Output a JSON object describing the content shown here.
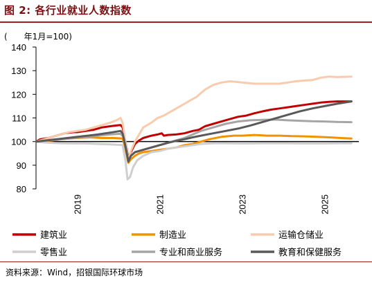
{
  "header": {
    "title": "图 2: 各行业就业人数指数"
  },
  "footer": {
    "source": "资料来源：Wind，招银国际环球市场"
  },
  "chart_data": {
    "type": "line",
    "unit_label": "(　　年1月=100)",
    "ylim": [
      80,
      140
    ],
    "yticks": [
      80,
      90,
      100,
      110,
      120,
      130,
      140
    ],
    "xlim": [
      2018.0,
      2025.83
    ],
    "xtick_labels": [
      "2019",
      "2021",
      "2023",
      "2025"
    ],
    "xtick_values": [
      2019.0,
      2021.0,
      2023.0,
      2025.0
    ],
    "grid": false,
    "legend_position": "bottom",
    "series": [
      {
        "name": "建筑业",
        "color": "#c00000",
        "points": [
          [
            2018.0,
            100
          ],
          [
            2018.1,
            101
          ],
          [
            2018.3,
            101.5
          ],
          [
            2018.5,
            102.5
          ],
          [
            2018.7,
            103.5
          ],
          [
            2018.9,
            104
          ],
          [
            2019.0,
            104
          ],
          [
            2019.2,
            104.5
          ],
          [
            2019.4,
            105
          ],
          [
            2019.6,
            106
          ],
          [
            2019.8,
            106.5
          ],
          [
            2019.95,
            106.8
          ],
          [
            2020.05,
            107
          ],
          [
            2020.1,
            106
          ],
          [
            2020.17,
            100
          ],
          [
            2020.24,
            93
          ],
          [
            2020.3,
            95.5
          ],
          [
            2020.4,
            99
          ],
          [
            2020.5,
            100.5
          ],
          [
            2020.6,
            101.5
          ],
          [
            2020.8,
            102.5
          ],
          [
            2020.95,
            103
          ],
          [
            2021.05,
            103.5
          ],
          [
            2021.1,
            102.5
          ],
          [
            2021.2,
            102.8
          ],
          [
            2021.4,
            103
          ],
          [
            2021.6,
            103.5
          ],
          [
            2021.8,
            104.5
          ],
          [
            2021.95,
            105
          ],
          [
            2022.1,
            106.5
          ],
          [
            2022.3,
            107.5
          ],
          [
            2022.5,
            108.5
          ],
          [
            2022.7,
            109.5
          ],
          [
            2022.9,
            110.5
          ],
          [
            2023.1,
            111
          ],
          [
            2023.3,
            112
          ],
          [
            2023.5,
            112.8
          ],
          [
            2023.7,
            113.5
          ],
          [
            2023.9,
            114
          ],
          [
            2024.1,
            114.5
          ],
          [
            2024.3,
            115
          ],
          [
            2024.5,
            115.5
          ],
          [
            2024.7,
            116
          ],
          [
            2024.9,
            116.5
          ],
          [
            2025.1,
            116.8
          ],
          [
            2025.3,
            117
          ],
          [
            2025.5,
            117
          ],
          [
            2025.65,
            117
          ]
        ]
      },
      {
        "name": "制造业",
        "color": "#f39200",
        "points": [
          [
            2018.0,
            100
          ],
          [
            2018.2,
            100.2
          ],
          [
            2018.4,
            100.5
          ],
          [
            2018.6,
            101
          ],
          [
            2018.8,
            101.3
          ],
          [
            2019.0,
            101.5
          ],
          [
            2019.3,
            101.8
          ],
          [
            2019.6,
            101.5
          ],
          [
            2019.9,
            101.5
          ],
          [
            2020.1,
            101.3
          ],
          [
            2020.17,
            97
          ],
          [
            2020.24,
            91
          ],
          [
            2020.3,
            92.5
          ],
          [
            2020.4,
            94
          ],
          [
            2020.5,
            95
          ],
          [
            2020.6,
            95.5
          ],
          [
            2020.8,
            96
          ],
          [
            2021.0,
            96.5
          ],
          [
            2021.2,
            97
          ],
          [
            2021.4,
            97.5
          ],
          [
            2021.6,
            98.5
          ],
          [
            2021.8,
            99
          ],
          [
            2022.0,
            100
          ],
          [
            2022.2,
            101
          ],
          [
            2022.5,
            102
          ],
          [
            2022.8,
            102.5
          ],
          [
            2023.0,
            102.5
          ],
          [
            2023.3,
            102.8
          ],
          [
            2023.6,
            102.5
          ],
          [
            2023.9,
            102.5
          ],
          [
            2024.2,
            102.3
          ],
          [
            2024.5,
            102.2
          ],
          [
            2024.8,
            102
          ],
          [
            2025.1,
            101.8
          ],
          [
            2025.4,
            101.5
          ],
          [
            2025.65,
            101.3
          ]
        ]
      },
      {
        "name": "运输仓储业",
        "color": "#f8cbad",
        "points": [
          [
            2018.0,
            100
          ],
          [
            2018.2,
            101
          ],
          [
            2018.4,
            102
          ],
          [
            2018.6,
            103
          ],
          [
            2018.8,
            104
          ],
          [
            2019.0,
            104.5
          ],
          [
            2019.2,
            105
          ],
          [
            2019.4,
            106
          ],
          [
            2019.6,
            107
          ],
          [
            2019.8,
            108
          ],
          [
            2019.95,
            109
          ],
          [
            2020.05,
            110
          ],
          [
            2020.1,
            108
          ],
          [
            2020.17,
            100
          ],
          [
            2020.24,
            92
          ],
          [
            2020.3,
            96
          ],
          [
            2020.4,
            100
          ],
          [
            2020.5,
            103
          ],
          [
            2020.6,
            106
          ],
          [
            2020.8,
            108
          ],
          [
            2020.95,
            110
          ],
          [
            2021.1,
            111
          ],
          [
            2021.3,
            113
          ],
          [
            2021.5,
            115
          ],
          [
            2021.7,
            117
          ],
          [
            2021.9,
            119
          ],
          [
            2022.1,
            122
          ],
          [
            2022.3,
            124
          ],
          [
            2022.5,
            125
          ],
          [
            2022.7,
            125.5
          ],
          [
            2022.9,
            125.2
          ],
          [
            2023.1,
            124.8
          ],
          [
            2023.3,
            124.5
          ],
          [
            2023.5,
            124.5
          ],
          [
            2023.7,
            124.5
          ],
          [
            2023.9,
            124.5
          ],
          [
            2024.1,
            125
          ],
          [
            2024.3,
            125.5
          ],
          [
            2024.5,
            125.8
          ],
          [
            2024.7,
            126
          ],
          [
            2024.9,
            127
          ],
          [
            2025.1,
            127.5
          ],
          [
            2025.3,
            127.3
          ],
          [
            2025.5,
            127.4
          ],
          [
            2025.65,
            127.5
          ]
        ]
      },
      {
        "name": "零售业",
        "color": "#d0cece",
        "points": [
          [
            2018.0,
            100
          ],
          [
            2018.3,
            99.5
          ],
          [
            2018.6,
            99.3
          ],
          [
            2018.9,
            99.2
          ],
          [
            2019.2,
            99.2
          ],
          [
            2019.5,
            99
          ],
          [
            2019.8,
            98.8
          ],
          [
            2020.1,
            98.5
          ],
          [
            2020.17,
            92
          ],
          [
            2020.22,
            84
          ],
          [
            2020.28,
            85
          ],
          [
            2020.35,
            89
          ],
          [
            2020.45,
            92
          ],
          [
            2020.6,
            94
          ],
          [
            2020.8,
            95.5
          ],
          [
            2021.0,
            96
          ],
          [
            2021.2,
            97
          ],
          [
            2021.4,
            97.5
          ],
          [
            2021.6,
            98
          ],
          [
            2021.8,
            98.5
          ],
          [
            2022.0,
            99
          ],
          [
            2022.3,
            99.3
          ],
          [
            2022.6,
            99.3
          ],
          [
            2022.9,
            99.2
          ],
          [
            2023.2,
            99.2
          ],
          [
            2023.5,
            99.3
          ],
          [
            2023.8,
            99.3
          ],
          [
            2024.1,
            99.3
          ],
          [
            2024.4,
            99.2
          ],
          [
            2024.7,
            99.2
          ],
          [
            2025.0,
            99.2
          ],
          [
            2025.3,
            99.3
          ],
          [
            2025.65,
            99.3
          ]
        ]
      },
      {
        "name": "专业和商业服务",
        "color": "#a5a5a5",
        "points": [
          [
            2018.0,
            100
          ],
          [
            2018.3,
            100.5
          ],
          [
            2018.6,
            101
          ],
          [
            2018.9,
            101.5
          ],
          [
            2019.2,
            102
          ],
          [
            2019.5,
            102.5
          ],
          [
            2019.8,
            103
          ],
          [
            2020.05,
            103.3
          ],
          [
            2020.12,
            102
          ],
          [
            2020.18,
            97
          ],
          [
            2020.24,
            92
          ],
          [
            2020.3,
            94
          ],
          [
            2020.4,
            95.5
          ],
          [
            2020.6,
            96.5
          ],
          [
            2020.8,
            97.5
          ],
          [
            2021.0,
            98.5
          ],
          [
            2021.2,
            99.5
          ],
          [
            2021.4,
            100.5
          ],
          [
            2021.6,
            101.5
          ],
          [
            2021.8,
            103
          ],
          [
            2022.0,
            104.5
          ],
          [
            2022.3,
            106
          ],
          [
            2022.6,
            107.5
          ],
          [
            2022.9,
            108.5
          ],
          [
            2023.2,
            109
          ],
          [
            2023.5,
            109.2
          ],
          [
            2023.8,
            109.3
          ],
          [
            2024.1,
            109
          ],
          [
            2024.4,
            108.8
          ],
          [
            2024.7,
            108.6
          ],
          [
            2025.0,
            108.5
          ],
          [
            2025.3,
            108.3
          ],
          [
            2025.65,
            108.2
          ]
        ]
      },
      {
        "name": "教育和保健服务",
        "color": "#595959",
        "points": [
          [
            2018.0,
            100
          ],
          [
            2018.3,
            100.6
          ],
          [
            2018.6,
            101.2
          ],
          [
            2018.9,
            101.8
          ],
          [
            2019.2,
            102.4
          ],
          [
            2019.5,
            103
          ],
          [
            2019.8,
            103.8
          ],
          [
            2020.05,
            104.5
          ],
          [
            2020.1,
            103.5
          ],
          [
            2020.17,
            98
          ],
          [
            2020.24,
            91.5
          ],
          [
            2020.3,
            94
          ],
          [
            2020.4,
            95.5
          ],
          [
            2020.6,
            96.5
          ],
          [
            2020.8,
            97.5
          ],
          [
            2021.0,
            98.5
          ],
          [
            2021.2,
            99.5
          ],
          [
            2021.4,
            100.3
          ],
          [
            2021.6,
            101
          ],
          [
            2021.8,
            101.8
          ],
          [
            2022.0,
            102.5
          ],
          [
            2022.3,
            103.5
          ],
          [
            2022.6,
            104.5
          ],
          [
            2022.9,
            105.5
          ],
          [
            2023.2,
            106.8
          ],
          [
            2023.5,
            108.3
          ],
          [
            2023.8,
            109.8
          ],
          [
            2024.1,
            111.3
          ],
          [
            2024.4,
            112.8
          ],
          [
            2024.7,
            114
          ],
          [
            2025.0,
            115
          ],
          [
            2025.3,
            116
          ],
          [
            2025.65,
            117
          ]
        ]
      }
    ]
  }
}
